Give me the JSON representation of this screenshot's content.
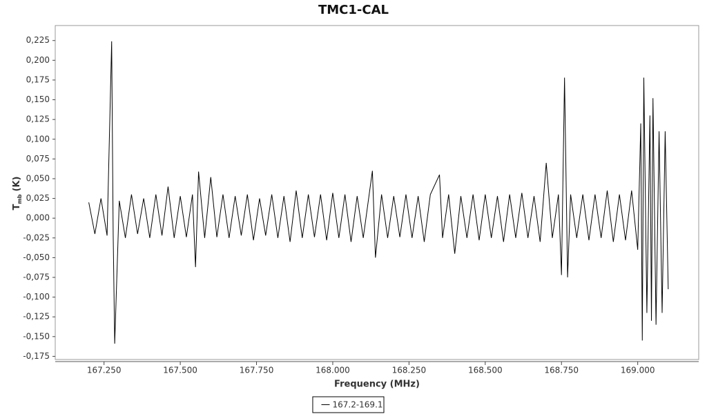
{
  "chart_data": {
    "type": "line",
    "title": "TMC1-CAL",
    "xlabel": "Frequency (MHz)",
    "ylabel": "T",
    "ylabel_sub": "mb",
    "ylabel_unit": "(K)",
    "x": [
      167.2,
      167.22,
      167.24,
      167.26,
      167.275,
      167.28,
      167.285,
      167.3,
      167.32,
      167.34,
      167.36,
      167.38,
      167.4,
      167.42,
      167.44,
      167.46,
      167.48,
      167.5,
      167.52,
      167.54,
      167.55,
      167.56,
      167.58,
      167.6,
      167.62,
      167.64,
      167.66,
      167.68,
      167.7,
      167.72,
      167.74,
      167.76,
      167.78,
      167.8,
      167.82,
      167.84,
      167.86,
      167.88,
      167.9,
      167.92,
      167.94,
      167.96,
      167.98,
      168.0,
      168.02,
      168.04,
      168.06,
      168.08,
      168.1,
      168.13,
      168.14,
      168.16,
      168.18,
      168.2,
      168.22,
      168.24,
      168.26,
      168.28,
      168.3,
      168.32,
      168.35,
      168.36,
      168.38,
      168.4,
      168.42,
      168.44,
      168.46,
      168.48,
      168.5,
      168.52,
      168.54,
      168.56,
      168.58,
      168.6,
      168.62,
      168.64,
      168.66,
      168.68,
      168.7,
      168.72,
      168.74,
      168.75,
      168.76,
      168.77,
      168.78,
      168.8,
      168.82,
      168.84,
      168.86,
      168.88,
      168.9,
      168.92,
      168.94,
      168.96,
      168.98,
      169.0,
      169.01,
      169.015,
      169.02,
      169.03,
      169.04,
      169.045,
      169.05,
      169.06,
      169.07,
      169.08,
      169.09,
      169.1
    ],
    "series": [
      {
        "name": "167.2-169.1",
        "color": "#000000",
        "values": [
          0.02,
          -0.02,
          0.025,
          -0.022,
          0.224,
          -0.02,
          -0.159,
          0.022,
          -0.025,
          0.03,
          -0.02,
          0.025,
          -0.025,
          0.03,
          -0.022,
          0.04,
          -0.025,
          0.028,
          -0.024,
          0.03,
          -0.062,
          0.059,
          -0.025,
          0.052,
          -0.024,
          0.03,
          -0.025,
          0.028,
          -0.022,
          0.03,
          -0.028,
          0.025,
          -0.022,
          0.03,
          -0.025,
          0.028,
          -0.03,
          0.035,
          -0.025,
          0.03,
          -0.024,
          0.03,
          -0.028,
          0.032,
          -0.025,
          0.03,
          -0.03,
          0.028,
          -0.025,
          0.06,
          -0.05,
          0.03,
          -0.025,
          0.028,
          -0.024,
          0.03,
          -0.025,
          0.028,
          -0.03,
          0.03,
          0.055,
          -0.025,
          0.03,
          -0.045,
          0.028,
          -0.025,
          0.03,
          -0.028,
          0.03,
          -0.025,
          0.028,
          -0.03,
          0.03,
          -0.025,
          0.032,
          -0.025,
          0.028,
          -0.03,
          0.07,
          -0.025,
          0.03,
          -0.072,
          0.178,
          -0.075,
          0.03,
          -0.025,
          0.03,
          -0.028,
          0.03,
          -0.025,
          0.035,
          -0.03,
          0.03,
          -0.028,
          0.035,
          -0.04,
          0.12,
          -0.155,
          0.178,
          -0.12,
          0.13,
          -0.13,
          0.152,
          -0.135,
          0.11,
          -0.12,
          0.11,
          -0.09
        ]
      }
    ],
    "xlim": [
      167.09,
      169.2
    ],
    "ylim": [
      -0.179,
      0.244
    ],
    "xticks": [
      {
        "value": 167.25,
        "label": "167.250"
      },
      {
        "value": 167.5,
        "label": "167.500"
      },
      {
        "value": 167.75,
        "label": "167.750"
      },
      {
        "value": 168,
        "label": "168.000"
      },
      {
        "value": 168.25,
        "label": "168.250"
      },
      {
        "value": 168.5,
        "label": "168.500"
      },
      {
        "value": 168.75,
        "label": "168.750"
      },
      {
        "value": 169,
        "label": "169.000"
      }
    ],
    "yticks": [
      {
        "value": -0.175,
        "label": "-0,175"
      },
      {
        "value": -0.15,
        "label": "-0,150"
      },
      {
        "value": -0.125,
        "label": "-0,125"
      },
      {
        "value": -0.1,
        "label": "-0,100"
      },
      {
        "value": -0.075,
        "label": "-0,075"
      },
      {
        "value": -0.05,
        "label": "-0,050"
      },
      {
        "value": -0.025,
        "label": "-0,025"
      },
      {
        "value": 0,
        "label": "0,000"
      },
      {
        "value": 0.025,
        "label": "0,025"
      },
      {
        "value": 0.05,
        "label": "0,050"
      },
      {
        "value": 0.075,
        "label": "0,075"
      },
      {
        "value": 0.1,
        "label": "0,100"
      },
      {
        "value": 0.125,
        "label": "0,125"
      },
      {
        "value": 0.15,
        "label": "0,150"
      },
      {
        "value": 0.175,
        "label": "0,175"
      },
      {
        "value": 0.2,
        "label": "0,200"
      },
      {
        "value": 0.225,
        "label": "0,225"
      }
    ],
    "grid": false,
    "legend": "bottom"
  }
}
